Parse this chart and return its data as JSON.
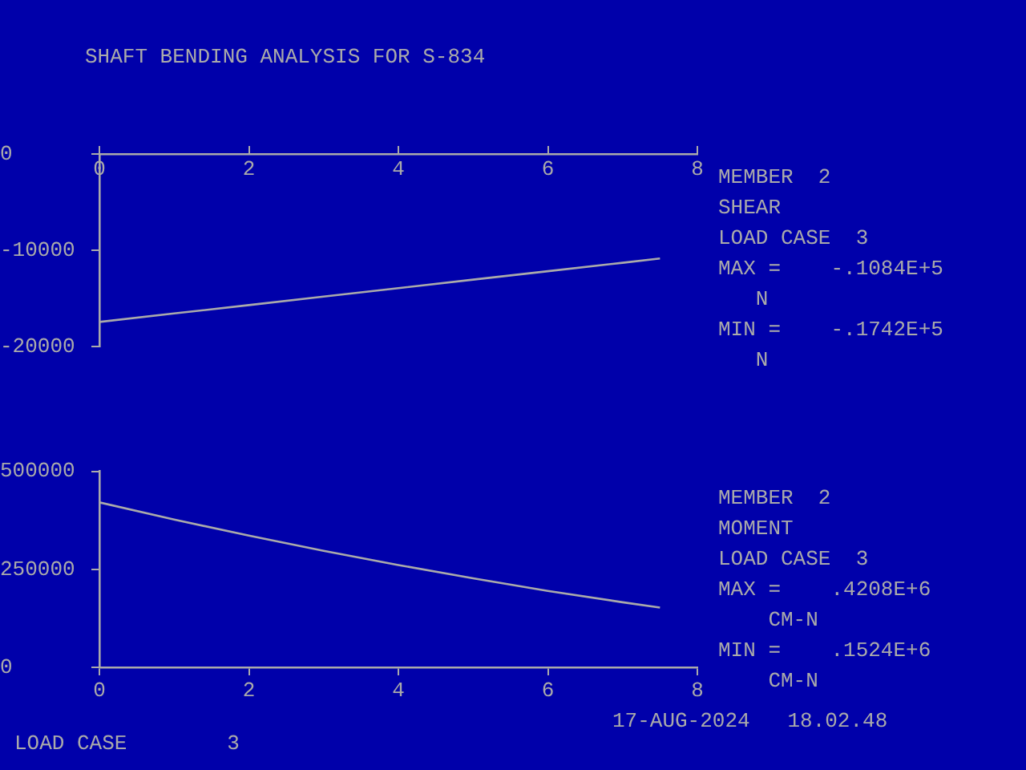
{
  "chart_data": [
    {
      "type": "line",
      "title": "SHAFT BENDING ANALYSIS FOR S-834",
      "xlim": [
        0,
        8
      ],
      "xticks": [
        0,
        2,
        4,
        6,
        8
      ],
      "ylim": [
        -20000,
        0
      ],
      "yticks": [
        -20000,
        -10000,
        0
      ],
      "series": [
        {
          "color": "#aaaaaa",
          "x": [
            0,
            1,
            2,
            3,
            4,
            5,
            6,
            7,
            7.5
          ],
          "values": [
            -17420,
            -16540,
            -15670,
            -14790,
            -13910,
            -13030,
            -12160,
            -11280,
            -10840
          ]
        }
      ],
      "marker": "none",
      "line_style": "solid",
      "annotations": [
        "MEMBER  2",
        "SHEAR",
        "LOAD CASE  3",
        "MAX =    -.1084E+5",
        "   N",
        "MIN =    -.1742E+5",
        "   N"
      ]
    },
    {
      "type": "line",
      "xlim": [
        0,
        8
      ],
      "xticks": [
        0,
        2,
        4,
        6,
        8
      ],
      "ylim": [
        0,
        500000
      ],
      "yticks": [
        0,
        250000,
        500000
      ],
      "series": [
        {
          "color": "#aaaaaa",
          "x": [
            0,
            1,
            2,
            3,
            4,
            5,
            6,
            7,
            7.5
          ],
          "values": [
            420800,
            377000,
            336000,
            297000,
            261000,
            227000,
            195000,
            166000,
            152400
          ]
        }
      ],
      "marker": "none",
      "line_style": "solid",
      "annotations": [
        "MEMBER  2",
        "MOMENT",
        "LOAD CASE  3",
        "MAX =    .4208E+6",
        "    CM-N",
        "MIN =    .1524E+6",
        "    CM-N",
        "17-AUG-2024   18.02.48",
        "LOAD CASE        3"
      ]
    }
  ]
}
